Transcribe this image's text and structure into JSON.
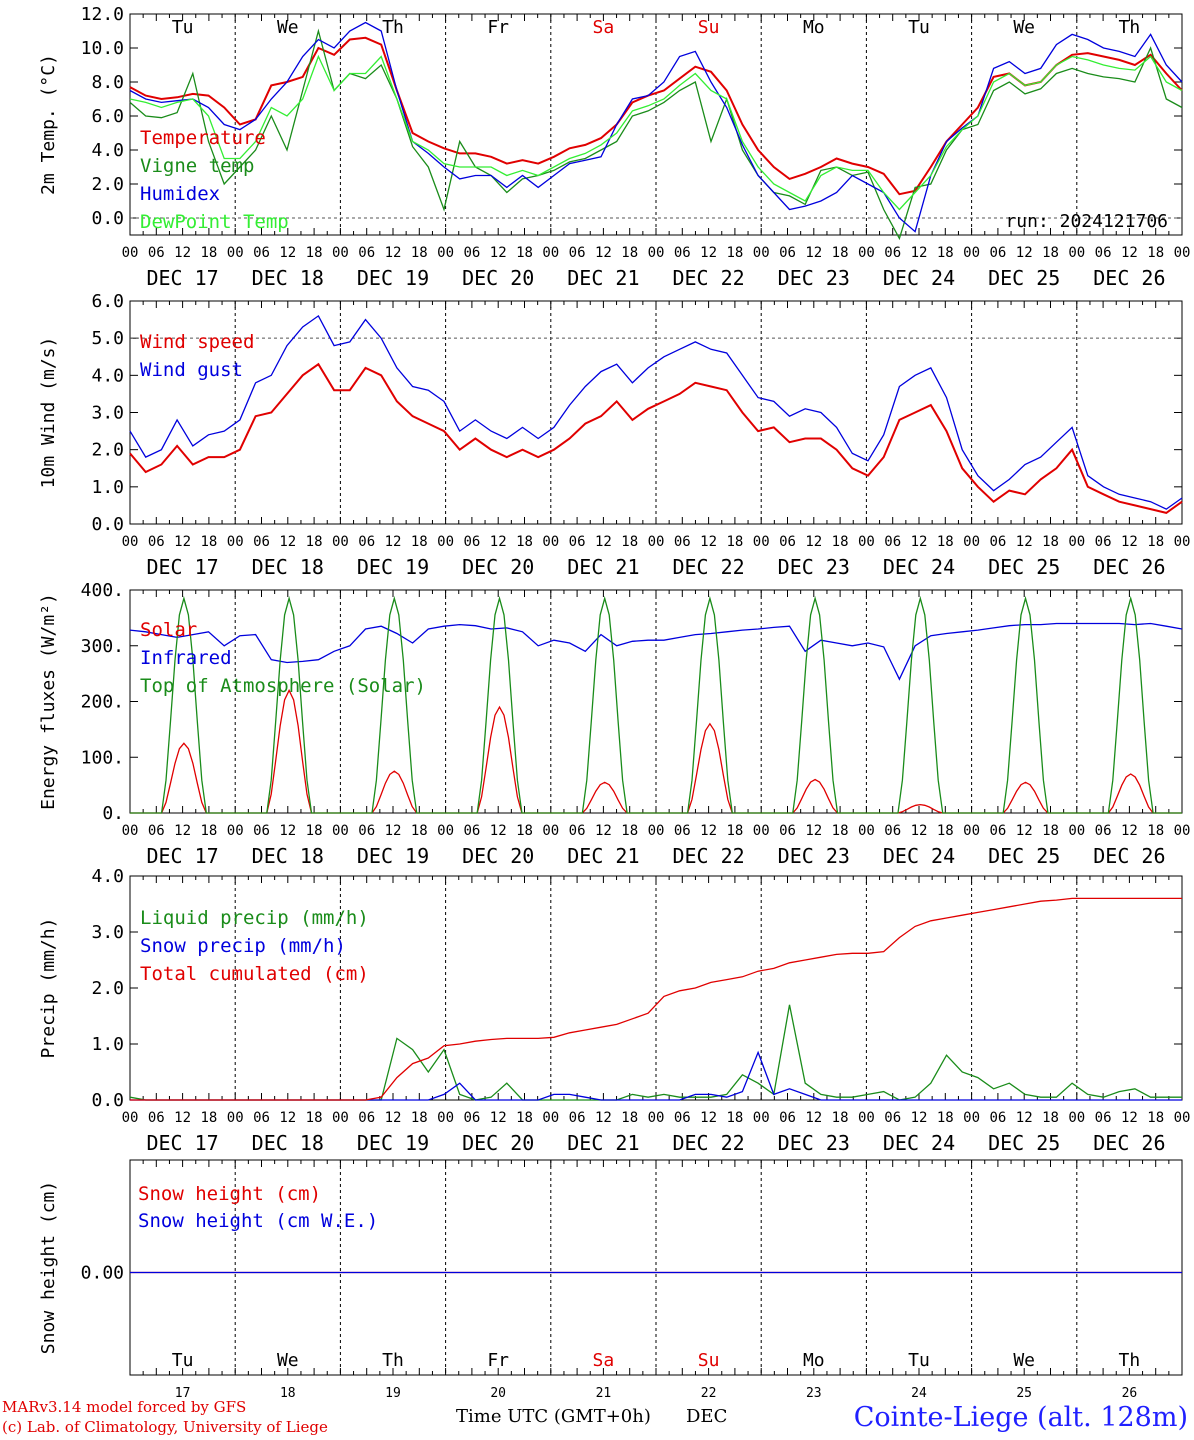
{
  "chart_data": [
    {
      "type": "line",
      "ylabel": "2m Temp. (°C)",
      "ylim": [
        -1.0,
        12.0
      ],
      "yticks": [
        "12.0",
        "10.0",
        "8.0",
        "6.0",
        "4.0",
        "2.0",
        "0.0"
      ],
      "annotation": "run: 2024121706",
      "dashed_reference": 0.0,
      "series": [
        {
          "name": "Temperature",
          "color": "#e00000",
          "values": [
            7.7,
            7.2,
            7.0,
            7.1,
            7.3,
            7.2,
            6.5,
            5.5,
            5.8,
            7.8,
            8.0,
            8.3,
            10.0,
            9.6,
            10.5,
            10.6,
            10.2,
            7.5,
            5.0,
            4.5,
            4.1,
            3.8,
            3.8,
            3.6,
            3.2,
            3.4,
            3.2,
            3.6,
            4.1,
            4.3,
            4.7,
            5.5,
            6.8,
            7.2,
            7.5,
            8.2,
            8.9,
            8.6,
            7.5,
            5.5,
            4.0,
            3.0,
            2.3,
            2.6,
            3.0,
            3.5,
            3.2,
            3.0,
            2.6,
            1.4,
            1.6,
            3.0,
            4.5,
            5.5,
            6.5,
            8.3,
            8.5,
            7.8,
            8.0,
            9.0,
            9.6,
            9.7,
            9.5,
            9.3,
            9.0,
            9.6,
            8.5,
            7.5
          ]
        },
        {
          "name": "Vigne temp",
          "color": "#1a8c1a",
          "values": [
            6.8,
            6.0,
            5.9,
            6.2,
            8.5,
            4.5,
            2.0,
            3.0,
            4.0,
            6.0,
            4.0,
            7.5,
            11.0,
            7.5,
            8.5,
            8.2,
            9.0,
            7.0,
            4.2,
            3.0,
            0.5,
            4.5,
            3.0,
            2.5,
            1.5,
            2.3,
            2.5,
            2.8,
            3.3,
            3.5,
            4.0,
            4.5,
            6.0,
            6.3,
            6.8,
            7.5,
            8.0,
            4.5,
            7.0,
            4.0,
            2.5,
            1.5,
            1.3,
            0.8,
            2.8,
            3.0,
            2.5,
            2.7,
            0.5,
            -1.2,
            1.8,
            2.0,
            4.0,
            5.2,
            5.5,
            7.5,
            8.0,
            7.3,
            7.6,
            8.5,
            8.8,
            8.5,
            8.3,
            8.2,
            8.0,
            10.0,
            7.0,
            6.5
          ]
        },
        {
          "name": "Humidex",
          "color": "#0000dd",
          "values": [
            7.5,
            7.0,
            6.8,
            6.9,
            7.0,
            6.5,
            5.5,
            5.2,
            5.8,
            7.0,
            8.0,
            9.5,
            10.5,
            10.0,
            11.0,
            11.5,
            11.0,
            7.5,
            4.5,
            3.8,
            3.0,
            2.3,
            2.5,
            2.5,
            1.8,
            2.5,
            1.8,
            2.5,
            3.2,
            3.4,
            3.6,
            5.5,
            7.0,
            7.2,
            8.0,
            9.5,
            9.8,
            8.0,
            6.5,
            4.3,
            2.5,
            1.5,
            0.5,
            0.7,
            1.0,
            1.5,
            2.5,
            2.0,
            1.5,
            0.0,
            -0.8,
            2.5,
            4.5,
            5.3,
            6.0,
            8.8,
            9.2,
            8.5,
            8.8,
            10.2,
            10.8,
            10.5,
            10.0,
            9.8,
            9.5,
            10.8,
            9.0,
            8.0
          ]
        },
        {
          "name": "DewPoint Temp",
          "color": "#33ee33",
          "values": [
            7.0,
            6.8,
            6.5,
            6.8,
            7.0,
            6.0,
            3.5,
            3.5,
            4.5,
            6.5,
            6.0,
            7.0,
            9.5,
            7.5,
            8.5,
            8.5,
            9.5,
            7.0,
            4.5,
            4.0,
            3.2,
            3.0,
            3.0,
            3.0,
            2.5,
            2.8,
            2.5,
            3.0,
            3.5,
            3.8,
            4.3,
            5.0,
            6.3,
            6.6,
            7.0,
            7.8,
            8.5,
            7.5,
            7.0,
            4.5,
            3.0,
            2.0,
            1.5,
            1.0,
            2.5,
            3.0,
            2.8,
            2.8,
            1.5,
            0.5,
            1.5,
            2.5,
            4.2,
            5.2,
            6.0,
            8.0,
            8.5,
            7.8,
            8.0,
            9.0,
            9.5,
            9.3,
            9.0,
            8.8,
            8.7,
            9.5,
            8.0,
            7.5
          ]
        }
      ]
    },
    {
      "type": "line",
      "ylabel": "10m Wind (m/s)",
      "ylim": [
        0.0,
        6.0
      ],
      "yticks": [
        "6.0",
        "5.0",
        "4.0",
        "3.0",
        "2.0",
        "1.0",
        "0.0"
      ],
      "dashed_reference": 5.0,
      "series": [
        {
          "name": "Wind speed",
          "color": "#e00000",
          "values": [
            1.9,
            1.4,
            1.6,
            2.1,
            1.6,
            1.8,
            1.8,
            2.0,
            2.9,
            3.0,
            3.5,
            4.0,
            4.3,
            3.6,
            3.6,
            4.2,
            4.0,
            3.3,
            2.9,
            2.7,
            2.5,
            2.0,
            2.3,
            2.0,
            1.8,
            2.0,
            1.8,
            2.0,
            2.3,
            2.7,
            2.9,
            3.3,
            2.8,
            3.1,
            3.3,
            3.5,
            3.8,
            3.7,
            3.6,
            3.0,
            2.5,
            2.6,
            2.2,
            2.3,
            2.3,
            2.0,
            1.5,
            1.3,
            1.8,
            2.8,
            3.0,
            3.2,
            2.5,
            1.5,
            1.0,
            0.6,
            0.9,
            0.8,
            1.2,
            1.5,
            2.0,
            1.0,
            0.8,
            0.6,
            0.5,
            0.4,
            0.3,
            0.6
          ]
        },
        {
          "name": "Wind gust",
          "color": "#0000dd",
          "values": [
            2.5,
            1.8,
            2.0,
            2.8,
            2.1,
            2.4,
            2.5,
            2.8,
            3.8,
            4.0,
            4.8,
            5.3,
            5.6,
            4.8,
            4.9,
            5.5,
            5.0,
            4.2,
            3.7,
            3.6,
            3.3,
            2.5,
            2.8,
            2.5,
            2.3,
            2.6,
            2.3,
            2.6,
            3.2,
            3.7,
            4.1,
            4.3,
            3.8,
            4.2,
            4.5,
            4.7,
            4.9,
            4.7,
            4.6,
            4.0,
            3.4,
            3.3,
            2.9,
            3.1,
            3.0,
            2.6,
            1.9,
            1.7,
            2.4,
            3.7,
            4.0,
            4.2,
            3.4,
            2.0,
            1.3,
            0.9,
            1.2,
            1.6,
            1.8,
            2.2,
            2.6,
            1.3,
            1.0,
            0.8,
            0.7,
            0.6,
            0.4,
            0.7
          ]
        }
      ]
    },
    {
      "type": "line",
      "ylabel": "Energy fluxes (W/m²)",
      "ylim": [
        0,
        400
      ],
      "yticks": [
        "400.",
        "300.",
        "200.",
        "100.",
        "0."
      ],
      "series": [
        {
          "name": "Solar",
          "color": "#e00000",
          "daily_peaks": [
            125,
            220,
            75,
            190,
            55,
            160,
            60,
            15,
            55,
            70
          ]
        },
        {
          "name": "Infrared",
          "color": "#0000dd",
          "values": [
            328,
            325,
            320,
            315,
            320,
            325,
            300,
            318,
            320,
            275,
            270,
            272,
            275,
            290,
            300,
            330,
            335,
            322,
            305,
            330,
            335,
            338,
            336,
            330,
            332,
            325,
            300,
            310,
            305,
            290,
            320,
            300,
            308,
            310,
            310,
            315,
            320,
            322,
            325,
            328,
            330,
            333,
            335,
            290,
            310,
            305,
            300,
            305,
            298,
            240,
            300,
            318,
            322,
            325,
            328,
            332,
            336,
            338,
            338,
            340,
            340,
            340,
            340,
            340,
            338,
            340,
            335,
            330
          ]
        },
        {
          "name": "Top of Atmosphere (Solar)",
          "color": "#1a8c1a",
          "daily_peaks": [
            385,
            385,
            385,
            385,
            385,
            385,
            385,
            385,
            385,
            385
          ]
        }
      ]
    },
    {
      "type": "line",
      "ylabel": "Precip (mm/h)",
      "ylim": [
        0.0,
        4.0
      ],
      "yticks": [
        "4.0",
        "3.0",
        "2.0",
        "1.0",
        "0.0"
      ],
      "series": [
        {
          "name": "Liquid precip (mm/h)",
          "color": "#1a8c1a",
          "values": [
            0.05,
            0,
            0,
            0,
            0,
            0,
            0,
            0,
            0,
            0,
            0,
            0,
            0,
            0,
            0,
            0,
            0,
            1.1,
            0.9,
            0.5,
            0.9,
            0.1,
            0,
            0.05,
            0.3,
            0,
            0,
            0,
            0,
            0,
            0,
            0,
            0.1,
            0.05,
            0.1,
            0.05,
            0.05,
            0.05,
            0.1,
            0.45,
            0.3,
            0.1,
            1.7,
            0.3,
            0.1,
            0.05,
            0.05,
            0.1,
            0.15,
            0,
            0.05,
            0.3,
            0.8,
            0.5,
            0.4,
            0.2,
            0.3,
            0.1,
            0.05,
            0.05,
            0.3,
            0.1,
            0.05,
            0.15,
            0.2,
            0.05,
            0.05,
            0.05
          ]
        },
        {
          "name": "Snow precip (mm/h)",
          "color": "#0000dd",
          "values": [
            0,
            0,
            0,
            0,
            0,
            0,
            0,
            0,
            0,
            0,
            0,
            0,
            0,
            0,
            0,
            0,
            0,
            0,
            0,
            0,
            0.1,
            0.3,
            0,
            0,
            0,
            0,
            0,
            0.1,
            0.1,
            0.05,
            0,
            0,
            0,
            0,
            0,
            0,
            0.1,
            0.1,
            0.05,
            0.15,
            0.85,
            0.1,
            0.2,
            0.1,
            0,
            0,
            0,
            0,
            0,
            0,
            0,
            0,
            0,
            0,
            0,
            0,
            0,
            0,
            0,
            0,
            0,
            0,
            0,
            0,
            0,
            0,
            0,
            0
          ]
        },
        {
          "name": "Total cumulated (cm)",
          "color": "#e00000",
          "values": [
            0,
            0,
            0,
            0,
            0,
            0,
            0,
            0,
            0,
            0,
            0,
            0,
            0,
            0,
            0,
            0,
            0.05,
            0.4,
            0.65,
            0.75,
            0.97,
            1.0,
            1.05,
            1.08,
            1.1,
            1.1,
            1.1,
            1.12,
            1.2,
            1.25,
            1.3,
            1.35,
            1.45,
            1.55,
            1.85,
            1.95,
            2.0,
            2.1,
            2.15,
            2.2,
            2.3,
            2.35,
            2.45,
            2.5,
            2.55,
            2.6,
            2.62,
            2.62,
            2.65,
            2.9,
            3.1,
            3.2,
            3.25,
            3.3,
            3.35,
            3.4,
            3.45,
            3.5,
            3.55,
            3.57,
            3.6,
            3.6,
            3.6,
            3.6,
            3.6,
            3.6,
            3.6,
            3.6
          ]
        }
      ]
    },
    {
      "type": "line",
      "ylabel": "Snow height (cm)",
      "yticks": [
        "0.00"
      ],
      "series": [
        {
          "name": "Snow height (cm)",
          "color": "#e00000",
          "values": [
            0,
            0
          ]
        },
        {
          "name": "Snow height (cm W.E.)",
          "color": "#0000dd",
          "values": [
            0,
            0
          ]
        }
      ]
    }
  ],
  "x_axis": {
    "hour_ticks": [
      "00",
      "06",
      "12",
      "18"
    ],
    "end_tick": "00",
    "dates": [
      "DEC 17",
      "DEC 18",
      "DEC 19",
      "DEC 20",
      "DEC 21",
      "DEC 22",
      "DEC 23",
      "DEC 24",
      "DEC 25",
      "DEC 26"
    ],
    "weekdays": [
      "Tu",
      "We",
      "Th",
      "Fr",
      "Sa",
      "Su",
      "Mo",
      "Tu",
      "We",
      "Th"
    ],
    "weekend_color": "#e00000",
    "day_numbers": [
      "17",
      "18",
      "19",
      "20",
      "21",
      "22",
      "23",
      "24",
      "25",
      "26"
    ],
    "xlabel": "Time UTC (GMT+0h)",
    "month": "DEC"
  },
  "footer": {
    "line1": "MARv3.14 model forced by GFS",
    "line2": "(c) Lab. of Climatology, University of Liege",
    "station": "Cointe-Liege (alt. 128m)"
  }
}
